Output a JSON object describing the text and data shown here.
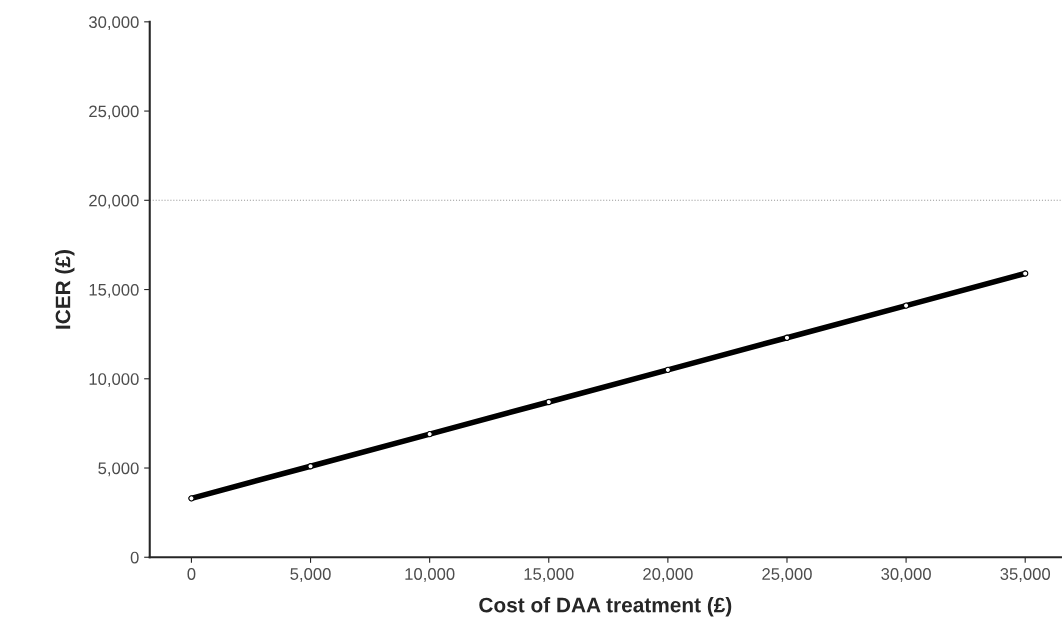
{
  "chart_data": {
    "type": "line",
    "xlabel": "Cost of DAA treatment (£)",
    "ylabel": "ICER (£)",
    "x": [
      0,
      5000,
      10000,
      15000,
      20000,
      25000,
      30000,
      35000
    ],
    "series": [
      {
        "color": "#000000",
        "values": [
          3300,
          5100,
          6900,
          8700,
          10500,
          12300,
          14100,
          15900
        ]
      }
    ],
    "xlim": [
      -1750,
      36500
    ],
    "xticks": [
      {
        "value": 0,
        "label": "0"
      },
      {
        "value": 5000,
        "label": "5,000"
      },
      {
        "value": 10000,
        "label": "10,000"
      },
      {
        "value": 15000,
        "label": "15,000"
      },
      {
        "value": 20000,
        "label": "20,000"
      },
      {
        "value": 25000,
        "label": "25,000"
      },
      {
        "value": 30000,
        "label": "30,000"
      },
      {
        "value": 35000,
        "label": "35,000"
      }
    ],
    "ylim": [
      0,
      30000
    ],
    "yticks": [
      {
        "value": 0,
        "label": "0"
      },
      {
        "value": 5000,
        "label": "5,000"
      },
      {
        "value": 10000,
        "label": "10,000"
      },
      {
        "value": 15000,
        "label": "15,000"
      },
      {
        "value": 20000,
        "label": "20,000"
      },
      {
        "value": 25000,
        "label": "25,000"
      },
      {
        "value": 30000,
        "label": "30,000"
      }
    ],
    "ref_lines": [
      {
        "axis": "y",
        "value": 20000,
        "color": "#999999",
        "line_style": "dotted"
      }
    ],
    "marker": "circle",
    "line_style": "solid",
    "grid": false,
    "legend": false
  }
}
